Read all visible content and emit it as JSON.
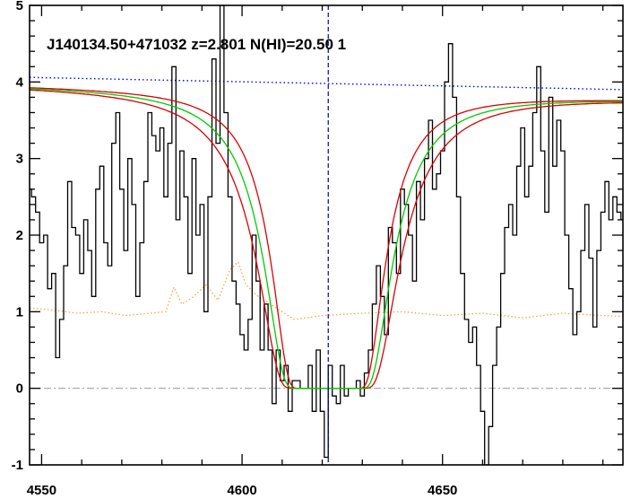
{
  "chart_data": {
    "type": "line",
    "title": "J140134.50+471032 z=2.801 N(HI)=20.50 1",
    "xlabel": "",
    "ylabel": "",
    "xlim": [
      4547,
      4695
    ],
    "ylim": [
      -1,
      5
    ],
    "x_ticks": [
      4550,
      4600,
      4650
    ],
    "y_ticks": [
      -1,
      0,
      1,
      2,
      3,
      4,
      5
    ],
    "grid": false,
    "legend": "none",
    "colors": {
      "flux": "#000000",
      "model": "#00cc00",
      "model_bounds": "#dd0000",
      "continuum": "#0000ff",
      "error": "#ff9933",
      "zero_line": "#999999",
      "center_line": "#0000aa"
    },
    "center_wavelength": 4621.5,
    "series": [
      {
        "kind": "flux-histogram",
        "x": [
          4547,
          4548,
          4549,
          4550,
          4551,
          4552,
          4553,
          4554,
          4555,
          4556,
          4557,
          4558,
          4559,
          4560,
          4561,
          4562,
          4563,
          4564,
          4565,
          4566,
          4567,
          4568,
          4569,
          4570,
          4571,
          4572,
          4573,
          4574,
          4575,
          4576,
          4577,
          4578,
          4579,
          4580,
          4581,
          4582,
          4583,
          4584,
          4585,
          4586,
          4587,
          4588,
          4589,
          4590,
          4591,
          4592,
          4593,
          4594,
          4595,
          4596,
          4597,
          4598,
          4599,
          4600,
          4601,
          4602,
          4603,
          4604,
          4605,
          4606,
          4607,
          4608,
          4609,
          4610,
          4611,
          4612,
          4613,
          4614,
          4615,
          4616,
          4617,
          4618,
          4619,
          4620,
          4621,
          4622,
          4623,
          4624,
          4625,
          4626,
          4627,
          4628,
          4629,
          4630,
          4631,
          4632,
          4633,
          4634,
          4635,
          4636,
          4637,
          4638,
          4639,
          4640,
          4641,
          4642,
          4643,
          4644,
          4645,
          4646,
          4647,
          4648,
          4649,
          4650,
          4651,
          4652,
          4653,
          4654,
          4655,
          4656,
          4657,
          4658,
          4659,
          4660,
          4661,
          4662,
          4663,
          4664,
          4665,
          4666,
          4667,
          4668,
          4669,
          4670,
          4671,
          4672,
          4673,
          4674,
          4675,
          4676,
          4677,
          4678,
          4679,
          4680,
          4681,
          4682,
          4683,
          4684,
          4685,
          4686,
          4687,
          4688,
          4689,
          4690,
          4691,
          4692,
          4693,
          4694,
          4695
        ],
        "y": [
          2.6,
          2.5,
          2.3,
          1.9,
          2.0,
          1.3,
          1.5,
          0.4,
          0.9,
          1.6,
          2.7,
          2.1,
          2.0,
          1.5,
          2.2,
          1.8,
          1.2,
          2.6,
          2.9,
          1.9,
          1.6,
          3.2,
          3.6,
          2.6,
          1.8,
          3.0,
          2.4,
          1.2,
          1.9,
          2.7,
          3.6,
          3.3,
          3.1,
          3.4,
          2.5,
          3.2,
          4.2,
          2.2,
          3.1,
          2.5,
          1.5,
          3.0,
          2.0,
          2.4,
          1.0,
          2.5,
          4.3,
          3.2,
          5.0,
          3.6,
          2.5,
          1.4,
          1.1,
          0.7,
          0.5,
          0.9,
          2.0,
          1.4,
          0.5,
          1.1,
          0.5,
          -0.2,
          0.5,
          0.1,
          0.3,
          -0.3,
          0.1,
          0.1,
          0.0,
          0.0,
          0.3,
          -0.3,
          0.5,
          -0.3,
          -0.9,
          0.3,
          -0.1,
          -0.2,
          0.3,
          -0.1,
          0.0,
          0.0,
          0.1,
          -0.1,
          0.2,
          0.5,
          1.1,
          1.6,
          1.2,
          0.7,
          2.1,
          1.9,
          1.5,
          2.6,
          2.4,
          2.0,
          1.4,
          2.7,
          2.2,
          3.0,
          3.5,
          2.6,
          2.8,
          3.1,
          4.0,
          4.5,
          3.8,
          2.5,
          1.5,
          0.9,
          0.6,
          0.8,
          0.3,
          -0.3,
          -1.0,
          -0.5,
          0.3,
          0.8,
          1.5,
          2.1,
          2.4,
          2.0,
          2.9,
          3.4,
          2.5,
          2.9,
          3.6,
          4.2,
          3.1,
          2.3,
          3.8,
          2.9,
          3.5,
          3.1,
          2.0,
          1.3,
          0.7,
          1.0,
          1.8,
          2.4,
          1.7,
          0.8,
          1.8,
          2.3,
          2.7,
          2.2,
          2.5,
          2.3,
          2.2
        ]
      },
      {
        "kind": "model-center",
        "b": 11.9,
        "flat_halfwidth": 3.5,
        "continuum": [
          3.95,
          3.78
        ]
      },
      {
        "kind": "model-bounds",
        "b": [
          10.2,
          13.6
        ],
        "flat_halfwidth": 3.5,
        "continuum": [
          3.95,
          3.78
        ]
      },
      {
        "kind": "continuum-dotted",
        "x": [
          4547,
          4695
        ],
        "y": [
          4.06,
          3.9
        ]
      },
      {
        "kind": "error-dotted",
        "x": [
          4547,
          4553,
          4559,
          4565,
          4571,
          4577,
          4581,
          4583,
          4585,
          4588,
          4591,
          4594,
          4597,
          4599,
          4601,
          4604,
          4607,
          4610,
          4613,
          4620,
          4630,
          4640,
          4650,
          4660,
          4670,
          4680,
          4690,
          4695
        ],
        "y": [
          1.05,
          1.02,
          0.98,
          1.0,
          0.95,
          0.98,
          1.0,
          1.32,
          1.1,
          1.2,
          1.35,
          1.15,
          1.55,
          1.65,
          1.35,
          1.2,
          1.1,
          1.0,
          0.9,
          0.95,
          0.98,
          1.0,
          0.95,
          0.98,
          0.92,
          0.98,
          0.95,
          0.94
        ]
      },
      {
        "kind": "zero-line",
        "y": 0
      }
    ]
  }
}
